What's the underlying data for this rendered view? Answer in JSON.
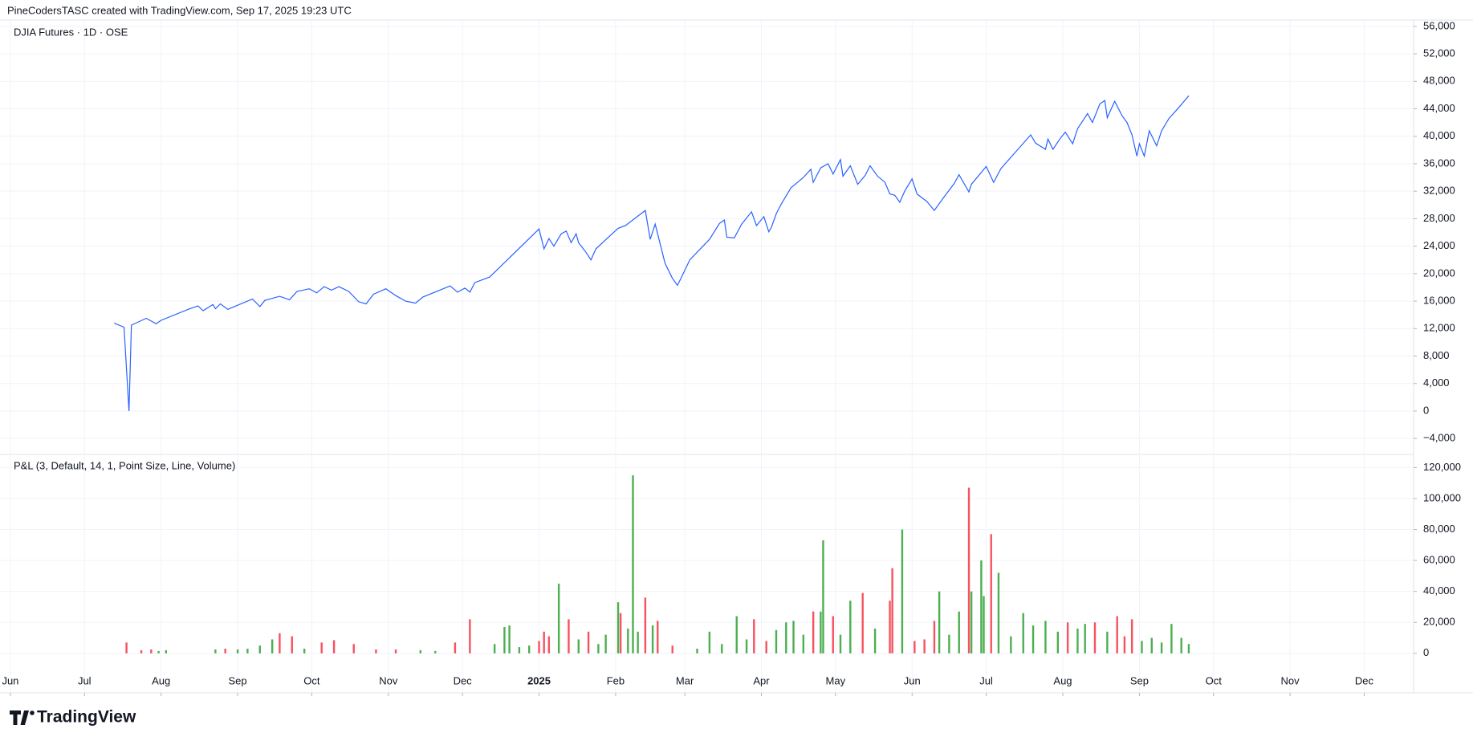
{
  "header": "PineCodersTASC created with TradingView.com, Sep 17, 2025 19:23 UTC",
  "brand": "TradingView",
  "chart_data": [
    {
      "type": "line",
      "title": "DJIA Futures · 1D · OSE",
      "color": "#2962ff",
      "grid": true,
      "xlim": [
        -4.2,
        568
      ],
      "ylim": [
        -6200,
        56800
      ],
      "yticks": [
        {
          "value": -4000,
          "label": "−4,000"
        },
        0,
        {
          "value": 4000,
          "label": "4,000"
        },
        {
          "value": 8000,
          "label": "8,000"
        },
        {
          "value": 12000,
          "label": "12,000"
        },
        {
          "value": 16000,
          "label": "16,000"
        },
        {
          "value": 20000,
          "label": "20,000"
        },
        {
          "value": 24000,
          "label": "24,000"
        },
        {
          "value": 28000,
          "label": "28,000"
        },
        {
          "value": 32000,
          "label": "32,000"
        },
        {
          "value": 36000,
          "label": "36,000"
        },
        {
          "value": 40000,
          "label": "40,000"
        },
        {
          "value": 44000,
          "label": "44,000"
        },
        {
          "value": 48000,
          "label": "48,000"
        },
        {
          "value": 52000,
          "label": "52,000"
        },
        {
          "value": 56000,
          "label": "56,000"
        }
      ],
      "x": [
        42,
        46,
        48,
        49,
        55,
        59,
        61,
        72,
        76,
        78,
        82,
        83,
        85,
        88,
        98,
        101,
        103,
        109,
        113,
        116,
        121,
        124,
        127,
        130,
        133,
        137,
        141,
        144,
        147,
        152,
        156,
        160,
        164,
        167,
        178,
        181,
        184,
        186,
        188,
        194,
        214,
        216,
        218,
        220,
        223,
        225,
        227,
        229,
        230,
        233,
        235,
        237,
        246,
        249,
        257,
        259,
        261,
        265,
        268,
        270,
        271,
        275,
        283,
        287,
        289,
        290,
        293,
        296,
        300,
        302,
        305,
        307,
        308,
        310,
        312,
        316,
        321,
        324,
        325,
        328,
        331,
        333,
        336,
        337,
        340,
        343,
        346,
        348,
        351,
        354,
        356,
        358,
        360,
        362,
        365,
        367,
        371,
        374,
        378,
        382,
        384,
        388,
        389,
        395,
        398,
        401,
        413,
        415,
        419,
        420,
        422,
        425,
        427,
        430,
        432,
        436,
        438,
        441,
        443,
        444,
        447,
        450,
        452,
        454,
        456,
        457,
        459,
        461,
        464,
        466,
        469,
        473,
        477
      ],
      "values": [
        12800,
        12200,
        0,
        12500,
        13500,
        12700,
        13200,
        14800,
        15300,
        14600,
        15500,
        14900,
        15600,
        14800,
        16300,
        15200,
        16100,
        16700,
        16200,
        17400,
        17800,
        17200,
        18100,
        17600,
        18100,
        17400,
        15900,
        15600,
        17000,
        17800,
        16800,
        16000,
        15700,
        16600,
        18200,
        17300,
        17900,
        17300,
        18700,
        19500,
        26500,
        23600,
        25100,
        24000,
        25800,
        26200,
        24500,
        25800,
        24500,
        23100,
        22000,
        23600,
        26600,
        27000,
        29200,
        25000,
        27200,
        21500,
        19300,
        18300,
        19000,
        22000,
        25000,
        27300,
        27800,
        25300,
        25200,
        27200,
        29000,
        27000,
        28300,
        26100,
        26700,
        28700,
        30100,
        32500,
        34000,
        35200,
        33300,
        35400,
        36000,
        34500,
        36600,
        34200,
        35700,
        33000,
        34300,
        35700,
        34200,
        33300,
        31600,
        31400,
        30400,
        32000,
        33800,
        31600,
        30500,
        29200,
        31200,
        33100,
        34400,
        31900,
        33000,
        35600,
        33300,
        35300,
        40200,
        39000,
        38100,
        39600,
        38100,
        39700,
        40600,
        38900,
        41100,
        43300,
        42000,
        44700,
        45200,
        42700,
        45100,
        43000,
        42000,
        40200,
        37100,
        38900,
        37100,
        40800,
        38600,
        40800,
        42600,
        44200,
        45900
      ]
    },
    {
      "type": "bar",
      "title": "P&L (3, Default, 14, 1, Point Size, Line, Volume)",
      "grid": true,
      "xlim": [
        -4.2,
        568
      ],
      "ylim": [
        -25000,
        128000
      ],
      "yticks": [
        0,
        {
          "value": 20000,
          "label": "20,000"
        },
        {
          "value": 40000,
          "label": "40,000"
        },
        {
          "value": 60000,
          "label": "60,000"
        },
        {
          "value": 80000,
          "label": "80,000"
        },
        {
          "value": 100000,
          "label": "100,000"
        },
        {
          "value": 120000,
          "label": "120,000"
        }
      ],
      "xticks": [
        {
          "value": 0,
          "label": "Jun"
        },
        {
          "value": 30,
          "label": "Jul"
        },
        {
          "value": 61,
          "label": "Aug"
        },
        {
          "value": 92,
          "label": "Sep"
        },
        {
          "value": 122,
          "label": "Oct"
        },
        {
          "value": 153,
          "label": "Nov"
        },
        {
          "value": 183,
          "label": "Dec"
        },
        {
          "value": 214,
          "label": "2025"
        },
        {
          "value": 245,
          "label": "Feb"
        },
        {
          "value": 273,
          "label": "Mar"
        },
        {
          "value": 304,
          "label": "Apr"
        },
        {
          "value": 334,
          "label": "May"
        },
        {
          "value": 365,
          "label": "Jun"
        },
        {
          "value": 395,
          "label": "Jul"
        },
        {
          "value": 426,
          "label": "Aug"
        },
        {
          "value": 457,
          "label": "Sep"
        },
        {
          "value": 487,
          "label": "Oct"
        },
        {
          "value": 518,
          "label": "Nov"
        },
        {
          "value": 548,
          "label": "Dec"
        }
      ],
      "x": [
        47,
        53,
        57,
        60,
        63,
        83,
        87,
        92,
        96,
        101,
        106,
        109,
        114,
        119,
        126,
        131,
        139,
        148,
        156,
        166,
        172,
        180,
        186,
        196,
        200,
        202,
        206,
        210,
        214,
        216,
        218,
        222,
        226,
        230,
        234,
        238,
        241,
        246,
        247,
        250,
        252,
        254,
        257,
        260,
        262,
        268,
        278,
        283,
        288,
        294,
        298,
        301,
        306,
        310,
        314,
        317,
        321,
        325,
        328,
        329,
        333,
        336,
        340,
        345,
        350,
        356,
        357,
        361,
        366,
        370,
        374,
        376,
        380,
        384,
        388,
        389,
        393,
        394,
        397,
        400,
        405,
        410,
        414,
        419,
        424,
        428,
        432,
        435,
        439,
        444,
        448,
        451,
        454,
        458,
        462,
        466,
        470,
        474,
        477
      ],
      "values": [
        7000,
        2000,
        2500,
        1500,
        2000,
        2500,
        3000,
        2500,
        3000,
        5000,
        9000,
        13000,
        11000,
        3000,
        7000,
        8500,
        6000,
        2500,
        2500,
        2000,
        1500,
        7000,
        22000,
        6000,
        17000,
        18000,
        4000,
        5000,
        8000,
        14000,
        11000,
        45000,
        22000,
        9000,
        14000,
        6000,
        12000,
        33000,
        26000,
        16000,
        115000,
        14000,
        36000,
        18000,
        21000,
        5000,
        3000,
        14000,
        6000,
        24000,
        9000,
        22000,
        8000,
        15000,
        20000,
        21000,
        12000,
        27000,
        27000,
        73000,
        24000,
        12000,
        34000,
        39000,
        16000,
        34000,
        55000,
        80000,
        8000,
        9000,
        21000,
        40000,
        12000,
        27000,
        107000,
        40000,
        60000,
        37000,
        77000,
        52000,
        11000,
        26000,
        18000,
        21000,
        14000,
        20000,
        16000,
        19000,
        20000,
        14000,
        24000,
        11000,
        22000,
        8000,
        10000,
        7000,
        19000,
        10000,
        6000
      ],
      "colors": [
        "#f7525f",
        "#f7525f",
        "#f7525f",
        "#4caf50",
        "#4caf50",
        "#4caf50",
        "#f7525f",
        "#4caf50",
        "#4caf50",
        "#4caf50",
        "#4caf50",
        "#f7525f",
        "#f7525f",
        "#4caf50",
        "#f7525f",
        "#f7525f",
        "#f7525f",
        "#f7525f",
        "#f7525f",
        "#4caf50",
        "#4caf50",
        "#f7525f",
        "#f7525f",
        "#4caf50",
        "#4caf50",
        "#4caf50",
        "#4caf50",
        "#4caf50",
        "#f7525f",
        "#f7525f",
        "#f7525f",
        "#4caf50",
        "#f7525f",
        "#4caf50",
        "#f7525f",
        "#4caf50",
        "#4caf50",
        "#4caf50",
        "#f7525f",
        "#4caf50",
        "#4caf50",
        "#4caf50",
        "#f7525f",
        "#4caf50",
        "#f7525f",
        "#f7525f",
        "#4caf50",
        "#4caf50",
        "#4caf50",
        "#4caf50",
        "#4caf50",
        "#f7525f",
        "#f7525f",
        "#4caf50",
        "#4caf50",
        "#4caf50",
        "#4caf50",
        "#f7525f",
        "#4caf50",
        "#4caf50",
        "#f7525f",
        "#4caf50",
        "#4caf50",
        "#f7525f",
        "#4caf50",
        "#f7525f",
        "#f7525f",
        "#4caf50",
        "#f7525f",
        "#f7525f",
        "#f7525f",
        "#4caf50",
        "#4caf50",
        "#4caf50",
        "#f7525f",
        "#4caf50",
        "#4caf50",
        "#4caf50",
        "#f7525f",
        "#4caf50",
        "#4caf50",
        "#4caf50",
        "#4caf50",
        "#4caf50",
        "#4caf50",
        "#f7525f",
        "#4caf50",
        "#4caf50",
        "#f7525f",
        "#4caf50",
        "#f7525f",
        "#f7525f",
        "#f7525f",
        "#4caf50",
        "#4caf50",
        "#4caf50",
        "#4caf50",
        "#4caf50",
        "#4caf50"
      ]
    }
  ]
}
